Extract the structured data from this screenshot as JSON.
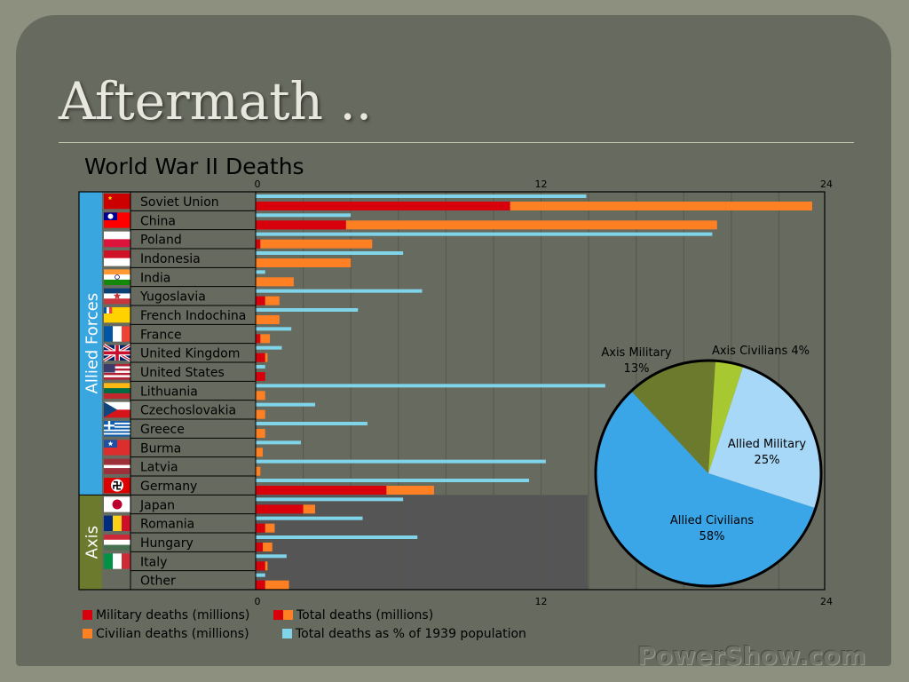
{
  "slide": {
    "title": "Aftermath ..",
    "watermark": "PowerShow.com"
  },
  "chart_data": [
    {
      "type": "bar",
      "title": "World War II Deaths",
      "xlim": [
        0,
        24
      ],
      "x_ticks": [
        "0",
        "12",
        "24"
      ],
      "groups": [
        {
          "label": "Allied Forces",
          "color": "#3aa6e0",
          "rows": [
            0,
            15
          ]
        },
        {
          "label": "Axis",
          "color": "#6b7a2d",
          "rows": [
            16,
            20
          ]
        }
      ],
      "categories": [
        "Soviet Union",
        "China",
        "Poland",
        "Indonesia",
        "India",
        "Yugoslavia",
        "French Indochina",
        "France",
        "United Kingdom",
        "United States",
        "Lithuania",
        "Czechoslovakia",
        "Greece",
        "Burma",
        "Latvia",
        "Germany",
        "Japan",
        "Romania",
        "Hungary",
        "Italy",
        "Other"
      ],
      "series": [
        {
          "name": "Military deaths (millions)",
          "color": "#d8000b",
          "values": [
            10.7,
            3.8,
            0.2,
            0,
            0,
            0.4,
            0,
            0.2,
            0.4,
            0.4,
            0,
            0,
            0,
            0,
            0,
            5.5,
            2.0,
            0.4,
            0.3,
            0.4,
            0.4
          ]
        },
        {
          "name": "Civilian deaths (millions)",
          "color": "#ff7f23",
          "values": [
            12.7,
            15.6,
            4.7,
            4.0,
            1.6,
            0.6,
            1.0,
            0.4,
            0.1,
            0,
            0.4,
            0.4,
            0.4,
            0.3,
            0.2,
            2.0,
            0.5,
            0.4,
            0.4,
            0.1,
            1.0
          ]
        },
        {
          "name": "Total deaths as % of 1939 population",
          "color": "#7fd4ea",
          "values": [
            13.9,
            4.0,
            19.2,
            6.2,
            0.4,
            7.0,
            4.3,
            1.5,
            1.1,
            0.4,
            14.7,
            2.5,
            4.7,
            1.9,
            12.2,
            11.5,
            6.2,
            4.5,
            6.8,
            1.3,
            0.4
          ]
        }
      ],
      "legend": [
        {
          "label": "Military deaths (millions)",
          "swatch": [
            "#d8000b"
          ]
        },
        {
          "label": "Total deaths (millions)",
          "swatch": [
            "#d8000b",
            "#ff7f23"
          ]
        },
        {
          "label": "Civilian deaths (millions)",
          "swatch": [
            "#ff7f23"
          ]
        },
        {
          "label": "Total deaths as % of 1939 population",
          "swatch": [
            "#7fd4ea"
          ]
        }
      ],
      "flags": [
        "soviet-flag",
        "china-roc-flag",
        "poland-flag",
        "indonesia-flag",
        "india-flag",
        "yugoslavia-flag",
        "french-indochina-flag",
        "france-flag",
        "united-kingdom-flag",
        "united-states-flag",
        "lithuania-flag",
        "czechoslovakia-flag",
        "greece-flag",
        "burma-flag",
        "latvia-flag",
        "germany-flag",
        "japan-flag",
        "romania-flag",
        "hungary-flag",
        "italy-flag",
        null
      ],
      "grid": true,
      "axis_band_color": "#555555",
      "plot_background": "#676a5e"
    },
    {
      "type": "pie",
      "slices": [
        {
          "label": "Allied Military",
          "value": 25,
          "display": "25%",
          "color": "#a7d8f7"
        },
        {
          "label": "Allied Civilians",
          "value": 58,
          "display": "58%",
          "color": "#3aa6e8"
        },
        {
          "label": "Axis Military",
          "value": 13,
          "display": "13%",
          "color": "#6b7a2d"
        },
        {
          "label": "Axis Civilians",
          "value": 4,
          "display": "4%",
          "color": "#a8c832"
        }
      ]
    }
  ]
}
